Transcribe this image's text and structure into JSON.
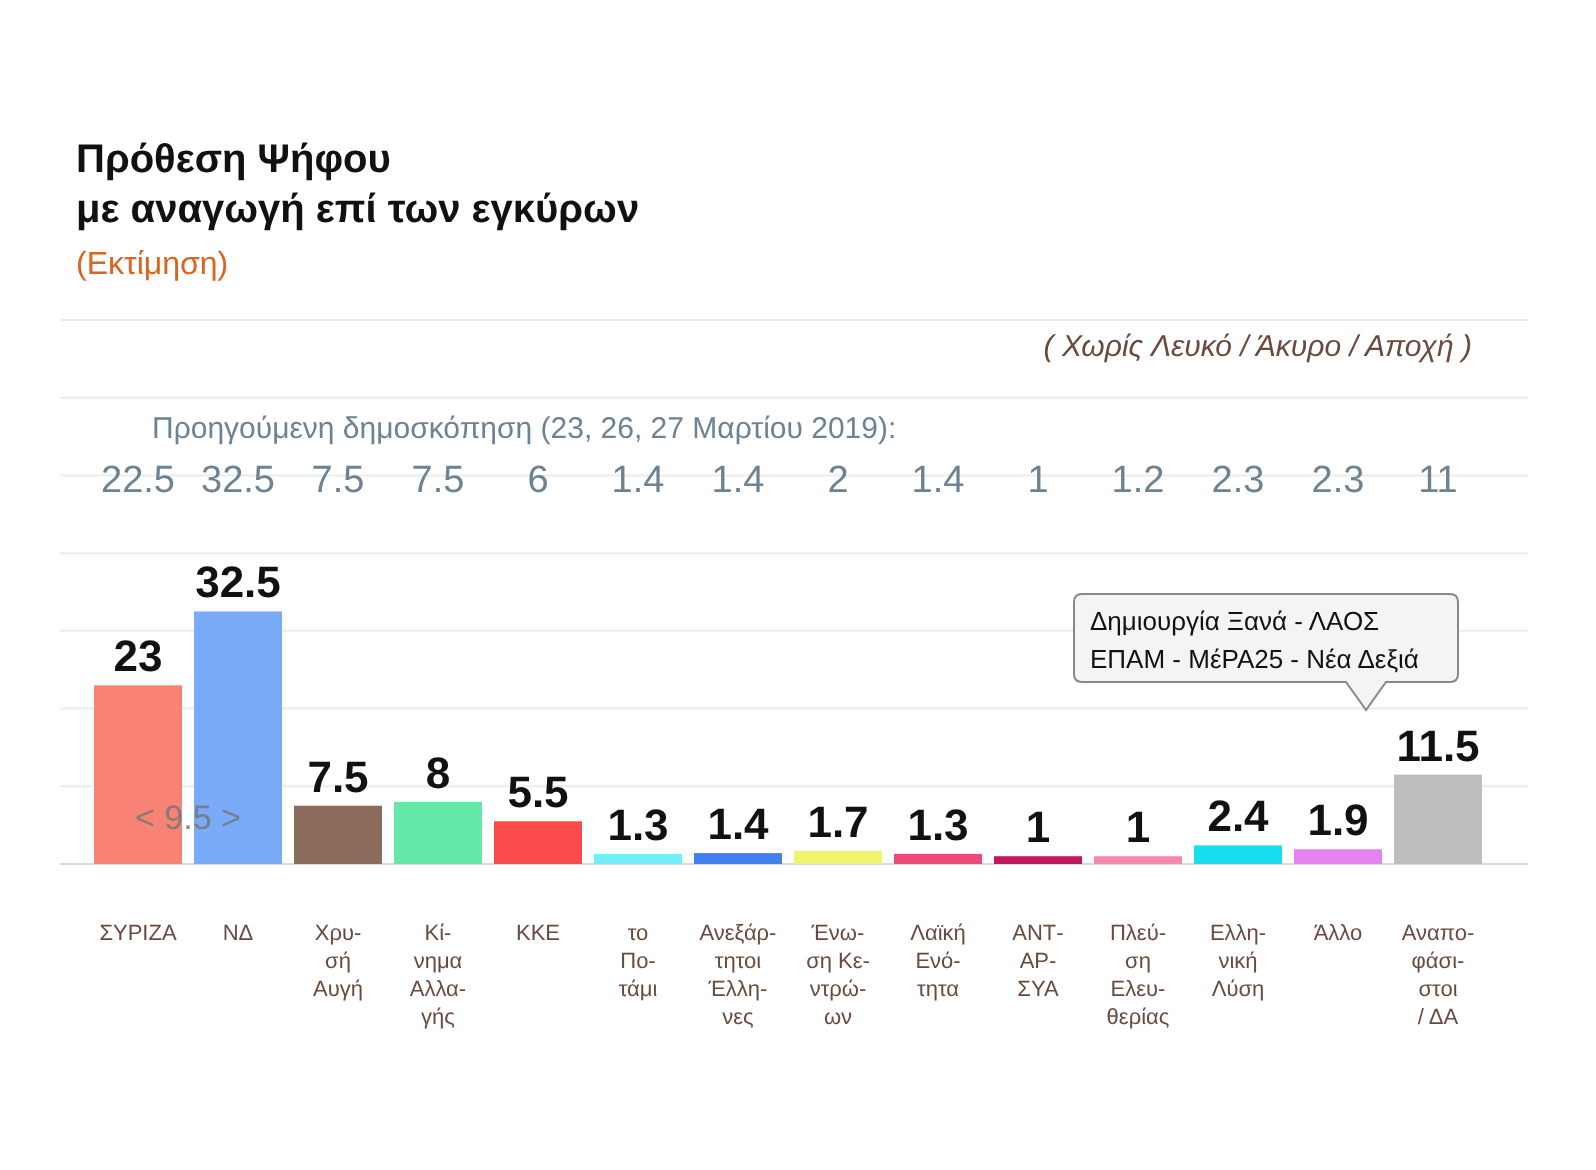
{
  "chart_data": {
    "type": "bar",
    "title": "Πρόθεση Ψήφου\nμε αναγωγή επί των εγκύρων",
    "subtitle": "(Εκτίμηση)",
    "categories": [
      "ΣΥΡΙΖΑ",
      "ΝΔ",
      "Χρυ-\nσή\nΑυγή",
      "Κί-\nνημα\nΑλλα-\nγής",
      "ΚΚΕ",
      "το\nΠο-\nτάμι",
      "Ανεξάρ-\nτητοι\nΈλλη-\nνες",
      "Ένω-\nση Κε-\nντρώ-\nων",
      "Λαϊκή\nΕνό-\nτητα",
      "ΑΝΤ-\nΑΡ-\nΣΥΑ",
      "Πλεύ-\nση\nΕλευ-\nθερίας",
      "Ελλη-\nνική\nΛύση",
      "Άλλο",
      "Αναπο-\nφάσι-\nστοι\n/ ΔΑ"
    ],
    "values": [
      23,
      32.5,
      7.5,
      8,
      5.5,
      1.3,
      1.4,
      1.7,
      1.3,
      1,
      1,
      2.4,
      1.9,
      11.5
    ],
    "colors": [
      "#f98276",
      "#7aabf9",
      "#8b6b5c",
      "#66e8a8",
      "#fa4a4a",
      "#6ff0f8",
      "#3f7ff0",
      "#eef56a",
      "#ef4a7c",
      "#c0185a",
      "#f589ab",
      "#16e0f0",
      "#e583f0",
      "#bdbdbd"
    ],
    "data_labels": true,
    "ylim": [
      0,
      70
    ],
    "yticks": [
      {
        "value": 0,
        "label": null
      },
      {
        "value": 10,
        "label": null
      },
      {
        "value": 20,
        "label": null
      },
      {
        "value": 30,
        "label": null
      },
      {
        "value": 40,
        "label": null
      },
      {
        "value": 50,
        "label": null
      },
      {
        "value": 60,
        "label": null
      },
      {
        "value": 70,
        "label": null
      }
    ],
    "grid": "y",
    "tick_labels": "x",
    "annotations": [
      "( Χωρίς Λευκό / Άκυρο / Αποχή )",
      "Προηγούμενη δημοσκόπηση (23, 26, 27 Μαρτίου 2019):",
      "< 9.5 >",
      "Δημιουργία Ξανά - ΛΑΟΣ\nΕΠΑΜ - ΜέΡΑ25 - Νέα Δεξιά",
      "22.5",
      "32.5",
      "7.5",
      "7.5",
      "6",
      "1.4",
      "1.4",
      "2",
      "1.4",
      "1",
      "1.2",
      "2.3",
      "2.3",
      "11"
    ]
  }
}
